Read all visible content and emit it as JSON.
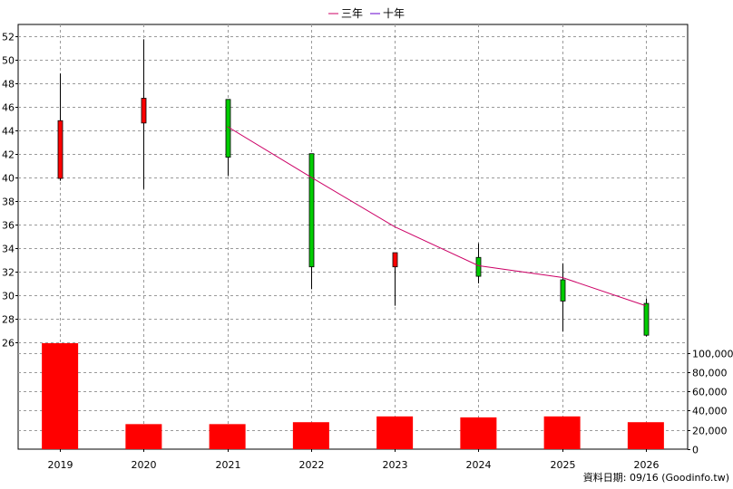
{
  "legend": [
    {
      "label": "三年",
      "color": "#cc0066"
    },
    {
      "label": "十年",
      "color": "#6600cc"
    }
  ],
  "footer_text": "資料日期: 09/16  (Goodinfo.tw)",
  "chart_data": {
    "type": "candlestick",
    "categories": [
      "2019",
      "2020",
      "2021",
      "2022",
      "2023",
      "2024",
      "2025",
      "2026"
    ],
    "price_axis": {
      "range": [
        26,
        52.5
      ],
      "ticks": [
        26,
        28,
        30,
        32,
        34,
        36,
        38,
        40,
        42,
        44,
        46,
        48,
        50,
        52
      ],
      "position": "left"
    },
    "volume_axis": {
      "range": [
        0,
        110000
      ],
      "ticks": [
        0,
        20000,
        40000,
        60000,
        80000,
        100000
      ],
      "tick_labels": [
        "0",
        "20,000",
        "40,000",
        "60,000",
        "80,000",
        "100,000"
      ],
      "position": "right"
    },
    "grid": true,
    "colors": {
      "up": "#ff0000",
      "down": "#00cc00",
      "volume": "#ff0000"
    },
    "candles": [
      {
        "year": "2019",
        "open": 39.9,
        "close": 44.8,
        "high": 48.8,
        "low": 39.7
      },
      {
        "year": "2020",
        "open": 44.6,
        "close": 46.7,
        "high": 51.7,
        "low": 39.0
      },
      {
        "year": "2021",
        "open": 46.6,
        "close": 41.7,
        "high": 46.6,
        "low": 40.1
      },
      {
        "year": "2022",
        "open": 42.0,
        "close": 32.4,
        "high": 42.0,
        "low": 30.5
      },
      {
        "year": "2023",
        "open": 32.4,
        "close": 33.6,
        "high": 33.6,
        "low": 29.1
      },
      {
        "year": "2024",
        "open": 33.2,
        "close": 31.6,
        "high": 34.4,
        "low": 31.0
      },
      {
        "year": "2025",
        "open": 31.3,
        "close": 29.5,
        "high": 32.7,
        "low": 26.9
      },
      {
        "year": "2026",
        "open": 29.3,
        "close": 26.6,
        "high": 29.7,
        "low": 26.5
      }
    ],
    "volume": [
      110000,
      26000,
      26000,
      28000,
      34000,
      33000,
      34000,
      28000
    ],
    "lines": [
      {
        "name": "三年",
        "color": "#cc0066",
        "points": [
          {
            "x": "2021",
            "y": 44.3
          },
          {
            "x": "2022",
            "y": 40.0
          },
          {
            "x": "2023",
            "y": 35.8
          },
          {
            "x": "2024",
            "y": 32.5
          },
          {
            "x": "2025",
            "y": 31.5
          },
          {
            "x": "2026",
            "y": 29.1
          }
        ]
      }
    ]
  }
}
